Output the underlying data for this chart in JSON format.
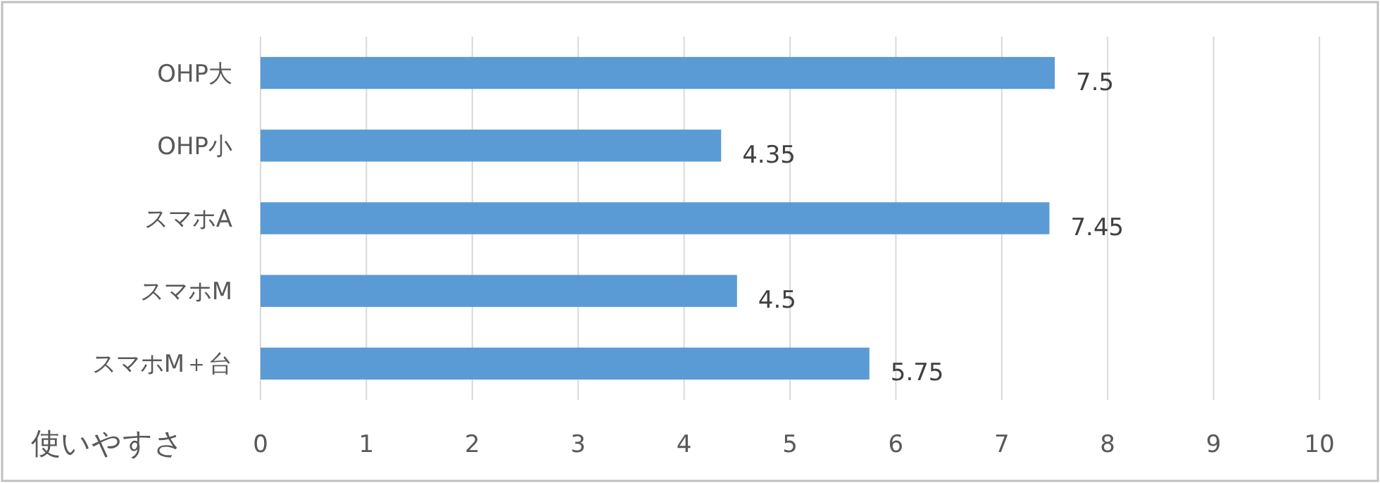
{
  "chart_data": {
    "type": "bar",
    "orientation": "horizontal",
    "xlabel": "使いやすさ",
    "categories": [
      "OHP大",
      "OHP小",
      "スマホA",
      "スマホM",
      "スマホM＋台"
    ],
    "values": [
      7.5,
      4.35,
      7.45,
      4.5,
      5.75
    ],
    "color": "#5b9bd5",
    "xlim": [
      0,
      10
    ],
    "xticks": [
      0,
      1,
      2,
      3,
      4,
      5,
      6,
      7,
      8,
      9,
      10
    ],
    "grid": "x",
    "data_labels": true
  }
}
